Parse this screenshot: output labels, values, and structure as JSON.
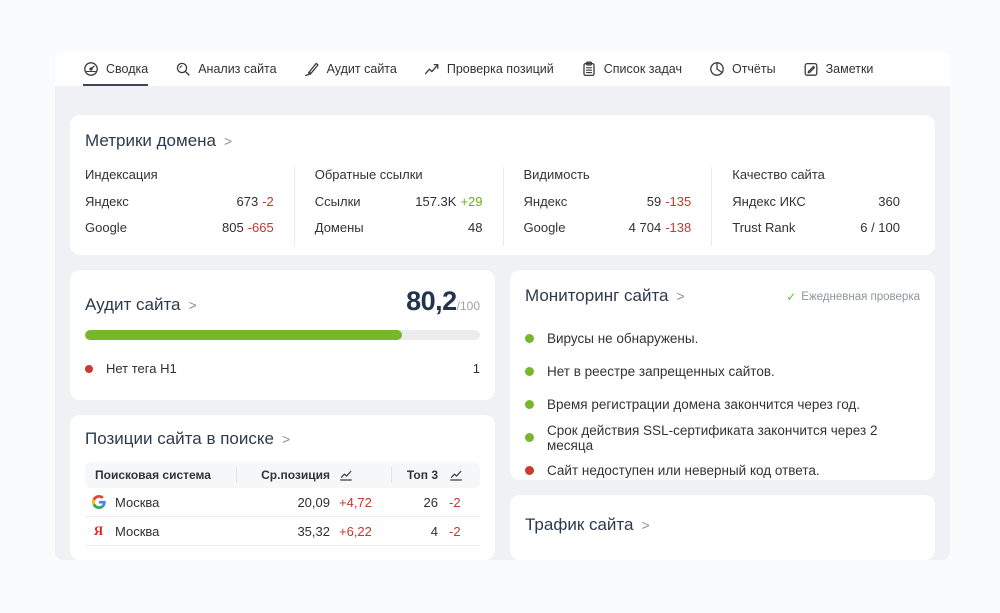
{
  "ui": {
    "chevron": ">",
    "check_glyph": "✓"
  },
  "colors": {
    "accent_green": "#77b72c",
    "accent_red": "#cb3a2f",
    "delta_red": "#c5382c",
    "delta_green": "#6fae24",
    "heading": "#2d3a4e",
    "content_bg": "#eff1f4"
  },
  "tabs": [
    {
      "label": "Сводка",
      "icon": "gauge-icon",
      "active": true
    },
    {
      "label": "Анализ сайта",
      "icon": "magnifier-icon",
      "active": false
    },
    {
      "label": "Аудит сайта",
      "icon": "pen-icon",
      "active": false
    },
    {
      "label": "Проверка позиций",
      "icon": "trend-arrow-icon",
      "active": false
    },
    {
      "label": "Список задач",
      "icon": "clipboard-icon",
      "active": false
    },
    {
      "label": "Отчёты",
      "icon": "pie-chart-icon",
      "active": false
    },
    {
      "label": "Заметки",
      "icon": "note-icon",
      "active": false
    }
  ],
  "domain_metrics": {
    "title": "Метрики домена",
    "columns": [
      {
        "title": "Индексация",
        "rows": [
          {
            "label": "Яндекс",
            "value": "673",
            "delta": "-2",
            "delta_color": "red"
          },
          {
            "label": "Google",
            "value": "805",
            "delta": "-665",
            "delta_color": "red"
          }
        ]
      },
      {
        "title": "Обратные ссылки",
        "rows": [
          {
            "label": "Ссылки",
            "value": "157.3K",
            "delta": "+29",
            "delta_color": "green"
          },
          {
            "label": "Домены",
            "value": "48",
            "delta": "",
            "delta_color": ""
          }
        ]
      },
      {
        "title": "Видимость",
        "rows": [
          {
            "label": "Яндекс",
            "value": "59",
            "delta": "-135",
            "delta_color": "red"
          },
          {
            "label": "Google",
            "value": "4 704",
            "delta": "-138",
            "delta_color": "red"
          }
        ]
      },
      {
        "title": "Качество сайта",
        "rows": [
          {
            "label": "Яндекс ИКС",
            "value": "360",
            "delta": "",
            "delta_color": ""
          },
          {
            "label": "Trust Rank",
            "value": "6 / 100",
            "delta": "",
            "delta_color": ""
          }
        ]
      }
    ]
  },
  "site_audit": {
    "title": "Аудит сайта",
    "score": "80,2",
    "score_max": "/100",
    "progress_percent": 80.2,
    "issues": [
      {
        "label": "Нет тега H1",
        "count": "1",
        "severity": "red"
      }
    ]
  },
  "positions": {
    "title": "Позиции сайта в поиске",
    "table": {
      "headers": [
        "Поисковая система",
        "Ср.позиция",
        "Топ 3"
      ],
      "rows": [
        {
          "engine": "google",
          "region": "Москва",
          "avg": "20,09",
          "avg_delta": "+4,72",
          "avg_delta_color": "red",
          "top3": "26",
          "top3_delta": "-2",
          "top3_delta_color": "red"
        },
        {
          "engine": "yandex",
          "region": "Москва",
          "avg": "35,32",
          "avg_delta": "+6,22",
          "avg_delta_color": "red",
          "top3": "4",
          "top3_delta": "-2",
          "top3_delta_color": "red"
        }
      ]
    }
  },
  "monitoring": {
    "title": "Мониторинг сайта",
    "badge": "Ежедневная проверка",
    "items": [
      {
        "text": "Вирусы не обнаружены.",
        "status": "green"
      },
      {
        "text": "Нет в реестре запрещенных сайтов.",
        "status": "green"
      },
      {
        "text": "Время регистрации домена закончится через год.",
        "status": "green"
      },
      {
        "text": "Срок действия SSL-сертификата закончится через 2 месяца",
        "status": "green"
      },
      {
        "text": "Сайт недоступен или неверный код ответа.",
        "status": "red"
      }
    ]
  },
  "traffic": {
    "title": "Трафик сайта"
  }
}
